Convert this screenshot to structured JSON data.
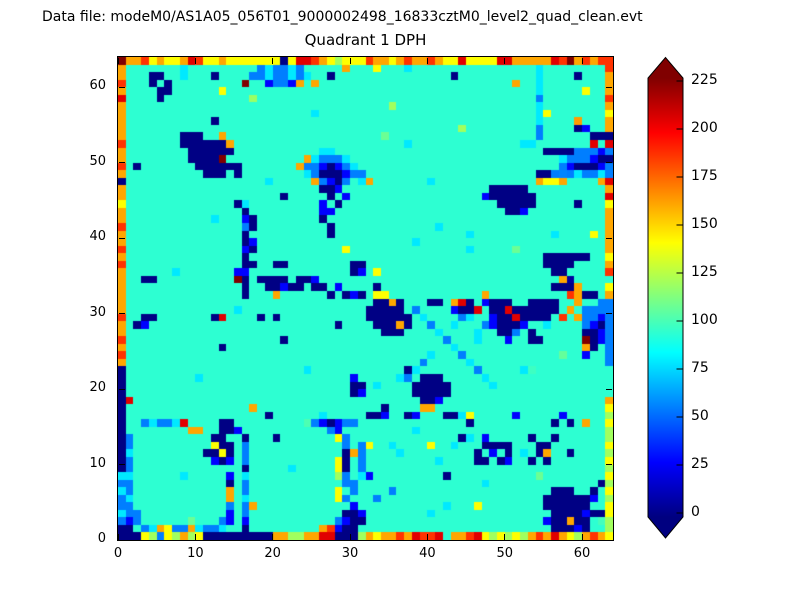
{
  "header": {
    "data_file_label": "Data file: modeM0/AS1A05_056T01_9000002498_16833cztM0_level2_quad_clean.evt"
  },
  "chart_data": {
    "type": "heatmap",
    "title": "Quadrant 1 DPH",
    "xlabel": "",
    "ylabel": "",
    "x_range": [
      0,
      64
    ],
    "y_range": [
      0,
      64
    ],
    "x_ticks": [
      0,
      10,
      20,
      30,
      40,
      50,
      60
    ],
    "y_ticks": [
      0,
      10,
      20,
      30,
      40,
      50,
      60
    ],
    "grid": false,
    "colormap": "jet",
    "colorbar_ticks": [
      0,
      25,
      50,
      75,
      100,
      125,
      150,
      175,
      200,
      225
    ],
    "colorbar_extend": "both",
    "vmin": -2,
    "vmax": 227,
    "palette_values": {
      "0": 2,
      "1": 30,
      "2": 58,
      "3": 82,
      "4": 95,
      "5": 108,
      "6": 128,
      "7": 147,
      "8": 166,
      "9": 190,
      "A": 208,
      "M": 234
    },
    "noise_amplitude": {
      "5": 14,
      "4": 8,
      "6": 8,
      "7": 6,
      "8": 5,
      "default": 3
    },
    "grid_rows_top_to_bottom": [
      "M88978778A9778777777707AA9876777988789889877A7777AA88888A9M89899",
      "8555555535555555552322325555585557555355555555555555553555555559",
      "8555005535550555522322323550555555555555555055555555553555505558",
      "9555050555555555M55122185855555555555555555555555558553555555558",
      "8555500555555755555555555555555555555555555555555555553555557558",
      "A555505555555555555555555555555555555555555555555555552555555559",
      "8555555555555555555555555555555555565555555555555555553555555558",
      "8555555555555555555555555355555555555555555555555555553755555557",
      "8555555555550555555555555555555555555555555555555555553555585558",
      "8555555555555555555555555555555555555555555565555555552555501558",
      "8555555500055855555555555555555555555555555555555555552555555000",
      "9555555500000085555555555555555555555355555555555555335555555A5A",
      "8555555550000005555555555533555555555555555555555555555000022212",
      "8555555550000M555555555583222355555555555555555555555555532221002",
      "9505555555000000555555582210123555555555555555555555555552100012",
      "8555555555500050555555553200012255555555555555555555550022232232",
      "0555555555555555555355555821025385555555355555555555558778555 58A",
      "8555555555555555555555555500155555555555555555550000055555555558",
      "8555555555555555555550555550515555555555555555510000005555555 55A",
      "7555555555555550355555555515055555555555555555555000005555505557",
      "8555555555555555055555555511555555555555555555555500155555555558",
      "8555555555553555105555555505555555555555555555555555555555555558",
      "9555555555555555205555555550555555555555535555555555555555555558",
      "8555555555555555055555555550555555555555555553555555555535555758",
      "8555555555555555015555555555555555555535555555555555555555555558",
      "9555555555555555105555555555575555555555555553555555555555555558",
      "8555555555555555055555555555555555555555555555555555555000000557",
      "9555555555555555005500555555550055555555555555555555555000055558",
      "8555555355555551155555555555550157555555555555555555555500555559",
      "855005555555555M0500005001555555555555555555555555555555580555558",
      "8555555555555555055001005005155550555555555555555555555500085557",
      "8555555555555555055585555550501057755555555555585555555555980058",
      "855555555555555555555555555555555008055500 58A05100055000055 85522",
      "8555555555555553555555555555555500000525555100A500A0000005852222",
      "9550055555550A5555050555555555550000005355552355100A000059582212",
      "8501555555555555555555555555055550008055255355521000155355552102",
      "8555555555555555555555555555555555000555535555355002505555550012",
      "9555555555555555555550555555555555555555552555355515500555 55M012",
      "8555555555555055555555555555555555555555555355555555555555558052",
      "9555555555555555555555555555555555555555355525555555555555551552",
      "8555555555555555555555555555555555555552555553555555555555555552",
      "0555555555555555555555553555555555555035555555255555355555555555",
      "0555555555355555555555555555551555553250005555535555555555555555",
      "0555555555555555555555555555550053555500000555553555555555555555",
      "0555555555555555555555555555550155555500000555555555555555555555",
      "0A55555555555555555555555555555555555550015555555555555555555558",
      "0555555555555555585555555555555555055558855555555555555555555557",
      "0555555555555555555055555535555500155015550037555551555551555556",
      "05523223A5555005555555555210122555555555555550555555555505058557",
      "0555555558855001555555555552155555555535555555555555555555555556",
      "0255555555550055055505555555725555555555555503515555505505555556",
      "0255555555557005255555555555525275535555755355500005550055555557",
      "0355555555500705255555555555508255553555555555051505350855055556",
      "0255555555551015255555555555705255555555535555005015505055555557",
      "0255555555555555055555355555705255555555555555555555555555555556",
      "3355555535555515355555555555625315555555550555555555555555555557",
      "2255555555555505255555555555522555555555555555535555555555555506",
      "3255555555555585255555555555752555525555555555555555555500055057",
      "2355555555555585355555555555725552555555555555555555555000000156",
      "2255555555555525285555555555551555555555553555755555555000000557",
      "3225555555555515255555555555500155555555355555555555555500001007",
      "2125555555555215155555555555210055555555555555555555555100800556",
      "0052387228322355055555555589100555555555555555555555555500010556",
      "000762768670000000008866 88AA0006878898A99A5889A767676898A8768987"
    ]
  }
}
